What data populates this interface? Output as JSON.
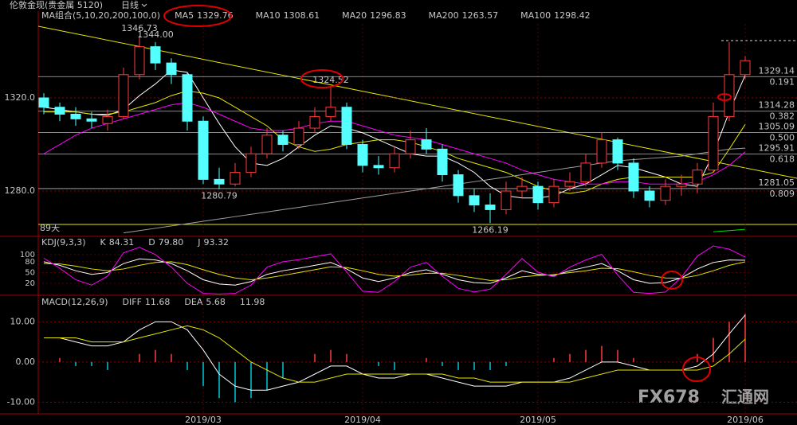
{
  "header": {
    "instrument": "伦敦金现(贵金属 5120)",
    "period": "日线"
  },
  "chart_data": {
    "type": "candlestick",
    "ma_title": "MA组合(5,10,20,200,100,0)",
    "ylim": [
      1261.2,
      1351.8
    ],
    "yticks": [
      {
        "value": 1320,
        "label": "1320.0"
      },
      {
        "value": 1280,
        "label": "1280.0"
      }
    ],
    "up_color": "#ff3b3b",
    "down_color": "#54ffff",
    "dates": [
      null,
      null,
      null,
      null,
      null,
      null,
      null,
      null,
      null,
      null,
      "2019/03",
      null,
      null,
      null,
      null,
      null,
      null,
      null,
      null,
      null,
      "2019/04",
      null,
      null,
      null,
      null,
      null,
      null,
      null,
      null,
      null,
      null,
      "2019/05",
      null,
      null,
      null,
      null,
      null,
      null,
      null,
      null,
      null,
      null,
      null,
      null,
      "2019/06"
    ],
    "candles": [
      [
        1320,
        1322,
        1313,
        1316
      ],
      [
        1316,
        1318,
        1310,
        1313
      ],
      [
        1313,
        1316,
        1308,
        1311
      ],
      [
        1311,
        1314,
        1307,
        1310
      ],
      [
        1309,
        1315,
        1306,
        1312
      ],
      [
        1312,
        1333,
        1311,
        1330
      ],
      [
        1330,
        1346.73,
        1328,
        1342
      ],
      [
        1342,
        1344,
        1332,
        1335
      ],
      [
        1335,
        1337,
        1326,
        1330
      ],
      [
        1330,
        1331,
        1306,
        1310
      ],
      [
        1310,
        1312,
        1283,
        1285
      ],
      [
        1285,
        1290,
        1280.79,
        1283
      ],
      [
        1283,
        1292,
        1282,
        1288
      ],
      [
        1288,
        1299,
        1286,
        1296
      ],
      [
        1296,
        1307,
        1294,
        1304
      ],
      [
        1304,
        1306,
        1297,
        1300
      ],
      [
        1300,
        1310,
        1298,
        1307
      ],
      [
        1307,
        1316,
        1305,
        1312
      ],
      [
        1312,
        1324.52,
        1310,
        1316
      ],
      [
        1316,
        1318,
        1298,
        1300
      ],
      [
        1300,
        1302,
        1288,
        1291
      ],
      [
        1291,
        1295,
        1287,
        1290
      ],
      [
        1290,
        1299,
        1288,
        1296
      ],
      [
        1296,
        1306,
        1294,
        1302
      ],
      [
        1302,
        1307,
        1296,
        1298
      ],
      [
        1298,
        1300,
        1284,
        1287
      ],
      [
        1287,
        1289,
        1275,
        1278
      ],
      [
        1278,
        1281,
        1271,
        1274
      ],
      [
        1274,
        1279,
        1266.19,
        1272
      ],
      [
        1272,
        1284,
        1270,
        1280
      ],
      [
        1280,
        1286,
        1277,
        1282
      ],
      [
        1282,
        1284,
        1272,
        1275
      ],
      [
        1275,
        1285,
        1273,
        1282
      ],
      [
        1282,
        1288,
        1280,
        1284
      ],
      [
        1284,
        1296,
        1282,
        1292
      ],
      [
        1292,
        1305,
        1290,
        1302
      ],
      [
        1302,
        1303,
        1289,
        1292
      ],
      [
        1292,
        1294,
        1277,
        1280
      ],
      [
        1280,
        1282,
        1273,
        1276
      ],
      [
        1276,
        1285,
        1274,
        1282
      ],
      [
        1282,
        1287,
        1278,
        1283
      ],
      [
        1283,
        1292,
        1279,
        1289
      ],
      [
        1289,
        1318,
        1288,
        1312
      ],
      [
        1312,
        1344.0,
        1310,
        1330
      ],
      [
        1330,
        1338,
        1328,
        1336
      ]
    ],
    "series": [
      {
        "name": "MA5",
        "color": "#ffffff",
        "last": 1329.76,
        "values": [
          1316,
          1315,
          1314,
          1313,
          1312.5,
          1315,
          1321,
          1326,
          1332,
          1331,
          1320,
          1309,
          1299,
          1292,
          1291,
          1294,
          1299,
          1304,
          1308,
          1307,
          1305,
          1302,
          1299,
          1296,
          1295,
          1295,
          1292,
          1288,
          1282,
          1278,
          1277,
          1277,
          1278,
          1281,
          1283,
          1287,
          1291,
          1290,
          1288,
          1286,
          1283,
          1282,
          1296,
          1314,
          1329.76
        ]
      },
      {
        "name": "MA10",
        "color": "#e6e600",
        "last": 1308.61,
        "values": [
          1314,
          1314,
          1314,
          1313,
          1313,
          1314,
          1316,
          1318,
          1321,
          1323,
          1322,
          1320,
          1316,
          1312,
          1308,
          1302,
          1299,
          1297,
          1298,
          1300,
          1301,
          1302,
          1302,
          1301,
          1299,
          1297,
          1294,
          1292,
          1290,
          1288,
          1285,
          1282,
          1280,
          1279,
          1280,
          1283,
          1285,
          1286,
          1286,
          1286,
          1286,
          1286,
          1288,
          1298,
          1308.61
        ]
      },
      {
        "name": "MA20",
        "color": "#ff00ff",
        "last": 1296.83,
        "values": [
          1296,
          1300,
          1304,
          1307,
          1309,
          1311,
          1313,
          1315,
          1317,
          1318,
          1316,
          1313,
          1310,
          1307,
          1306,
          1306,
          1307,
          1309,
          1310,
          1310,
          1308,
          1306,
          1304,
          1303,
          1302,
          1300,
          1298,
          1296,
          1294,
          1292,
          1289,
          1287,
          1285,
          1284,
          1283,
          1283,
          1284,
          1284,
          1283,
          1283,
          1283,
          1284,
          1287,
          1291,
          1296.83
        ]
      },
      {
        "name": "MA200",
        "color": "#00e000",
        "last": 1263.57,
        "values": [
          null,
          null,
          null,
          null,
          null,
          null,
          null,
          null,
          null,
          null,
          null,
          null,
          null,
          null,
          null,
          null,
          null,
          null,
          null,
          null,
          null,
          null,
          null,
          null,
          null,
          null,
          null,
          null,
          null,
          null,
          null,
          null,
          null,
          null,
          null,
          null,
          null,
          null,
          null,
          null,
          null,
          null,
          1262.5,
          1263,
          1263.57
        ]
      },
      {
        "name": "MA100",
        "color": "#a0a0a0",
        "last": 1298.42,
        "values": [
          null,
          null,
          null,
          null,
          null,
          1262,
          1263,
          1264,
          1265,
          1266,
          1267,
          1268,
          1269,
          1270,
          1271,
          1272,
          1273,
          1274,
          1275,
          1276,
          1277,
          1278,
          1279,
          1280,
          1281,
          1282,
          1283,
          1284,
          1285,
          1286,
          1287,
          1288,
          1289,
          1290,
          1291,
          1292,
          1293,
          1293.5,
          1294,
          1294.5,
          1295,
          1296,
          1297,
          1298,
          1298.42
        ]
      }
    ],
    "annotations": [
      {
        "value": 1346.73
      },
      {
        "value": 1324.52
      },
      {
        "value": 1280.79
      },
      {
        "value": 1266.19
      },
      {
        "value": 1344,
        "label": "1344.00"
      }
    ],
    "fib_levels": [
      {
        "price": 1329.14,
        "ratio": 0.191
      },
      {
        "price": 1314.28,
        "ratio": 0.382
      },
      {
        "price": 1305.09,
        "ratio": {
          "value": 0.5,
          "label": "0.500"
        }
      },
      {
        "price": 1295.91,
        "ratio": 0.618
      },
      {
        "price": 1281.05,
        "ratio": 0.809
      }
    ],
    "period_label": "89天",
    "kdj": {
      "title": "KDJ(9,3,3)",
      "ylim": [
        -11,
        144
      ],
      "yticks": [
        100,
        80,
        50,
        20
      ],
      "series": [
        {
          "name": "K",
          "color": "#ffffff",
          "last": 84.31,
          "values": [
            80,
            70,
            55,
            45,
            50,
            75,
            88,
            85,
            75,
            55,
            30,
            18,
            15,
            25,
            45,
            55,
            62,
            70,
            78,
            60,
            35,
            25,
            35,
            50,
            58,
            45,
            30,
            22,
            20,
            35,
            55,
            45,
            42,
            55,
            65,
            75,
            55,
            30,
            20,
            22,
            35,
            60,
            78,
            85,
            84.31
          ]
        },
        {
          "name": "D",
          "color": "#e6e600",
          "last": {
            "value": 79.8,
            "label": "79.80"
          },
          "values": [
            75,
            74,
            68,
            60,
            55,
            60,
            70,
            78,
            80,
            72,
            58,
            45,
            35,
            30,
            35,
            42,
            50,
            58,
            66,
            64,
            55,
            45,
            40,
            43,
            48,
            48,
            42,
            35,
            28,
            30,
            38,
            42,
            44,
            50,
            55,
            62,
            61,
            52,
            42,
            35,
            34,
            42,
            55,
            70,
            79.8
          ]
        },
        {
          "name": "J",
          "color": "#ff00ff",
          "last": 93.32,
          "values": [
            90,
            62,
            30,
            15,
            40,
            105,
            120,
            100,
            65,
            20,
            -8,
            -10,
            -8,
            15,
            65,
            80,
            86,
            94,
            102,
            52,
            -2,
            -5,
            25,
            65,
            78,
            40,
            6,
            -4,
            4,
            45,
            89,
            51,
            38,
            65,
            85,
            101,
            43,
            -5,
            -8,
            -4,
            37,
            96,
            124,
            115,
            93.32
          ]
        }
      ]
    },
    "macd": {
      "title": "MACD(12,26,9)",
      "ylim": [
        -12.9,
        16.4
      ],
      "yticks": [
        {
          "value": 10,
          "label": "10.00"
        },
        {
          "value": 0,
          "label": "0.00"
        },
        {
          "value": -10,
          "label": "-10.00"
        }
      ],
      "series": [
        {
          "name": "DIFF",
          "color": "#ffffff",
          "last": 11.68,
          "values": [
            6,
            6,
            5,
            4,
            4,
            5,
            8,
            10,
            10,
            8,
            3,
            -3,
            -6,
            -7,
            -7,
            -6,
            -5,
            -3,
            -1,
            -1,
            -3,
            -4,
            -4,
            -3,
            -3,
            -4,
            -5,
            -6,
            -6,
            -6,
            -5,
            -5,
            -5,
            -4,
            -2,
            0,
            0,
            -1,
            -2,
            -2,
            -2,
            -1,
            2,
            7,
            11.68
          ]
        },
        {
          "name": "DEA",
          "color": "#e6e600",
          "last": 5.68,
          "values": [
            6,
            6,
            6,
            5,
            5,
            5,
            6,
            7,
            8,
            9,
            8,
            6,
            3,
            0,
            -2,
            -4,
            -5,
            -5,
            -4,
            -3,
            -3,
            -3,
            -3,
            -3,
            -3,
            -3,
            -4,
            -4,
            -5,
            -5,
            -5,
            -5,
            -5,
            -5,
            -4,
            -3,
            -2,
            -2,
            -2,
            -2,
            -2,
            -2,
            -1,
            2,
            5.68
          ]
        }
      ],
      "histogram": {
        "last": 11.98,
        "up_color": "#ff3b3b",
        "down_color": "#00c8d8",
        "values": [
          0,
          1,
          -1,
          -1,
          -2,
          0,
          2,
          3,
          2,
          -2,
          -6,
          -9,
          -10,
          -9,
          -7,
          -4,
          0,
          2,
          3,
          2,
          0,
          -1,
          -2,
          0,
          1,
          -1,
          -2,
          -2,
          -2,
          -1,
          0,
          0,
          1,
          2,
          3,
          4,
          3,
          1,
          0,
          0,
          0,
          2,
          6,
          10,
          11.98
        ]
      }
    }
  },
  "watermark": {
    "brand": "FX678",
    "name": "汇通网"
  }
}
